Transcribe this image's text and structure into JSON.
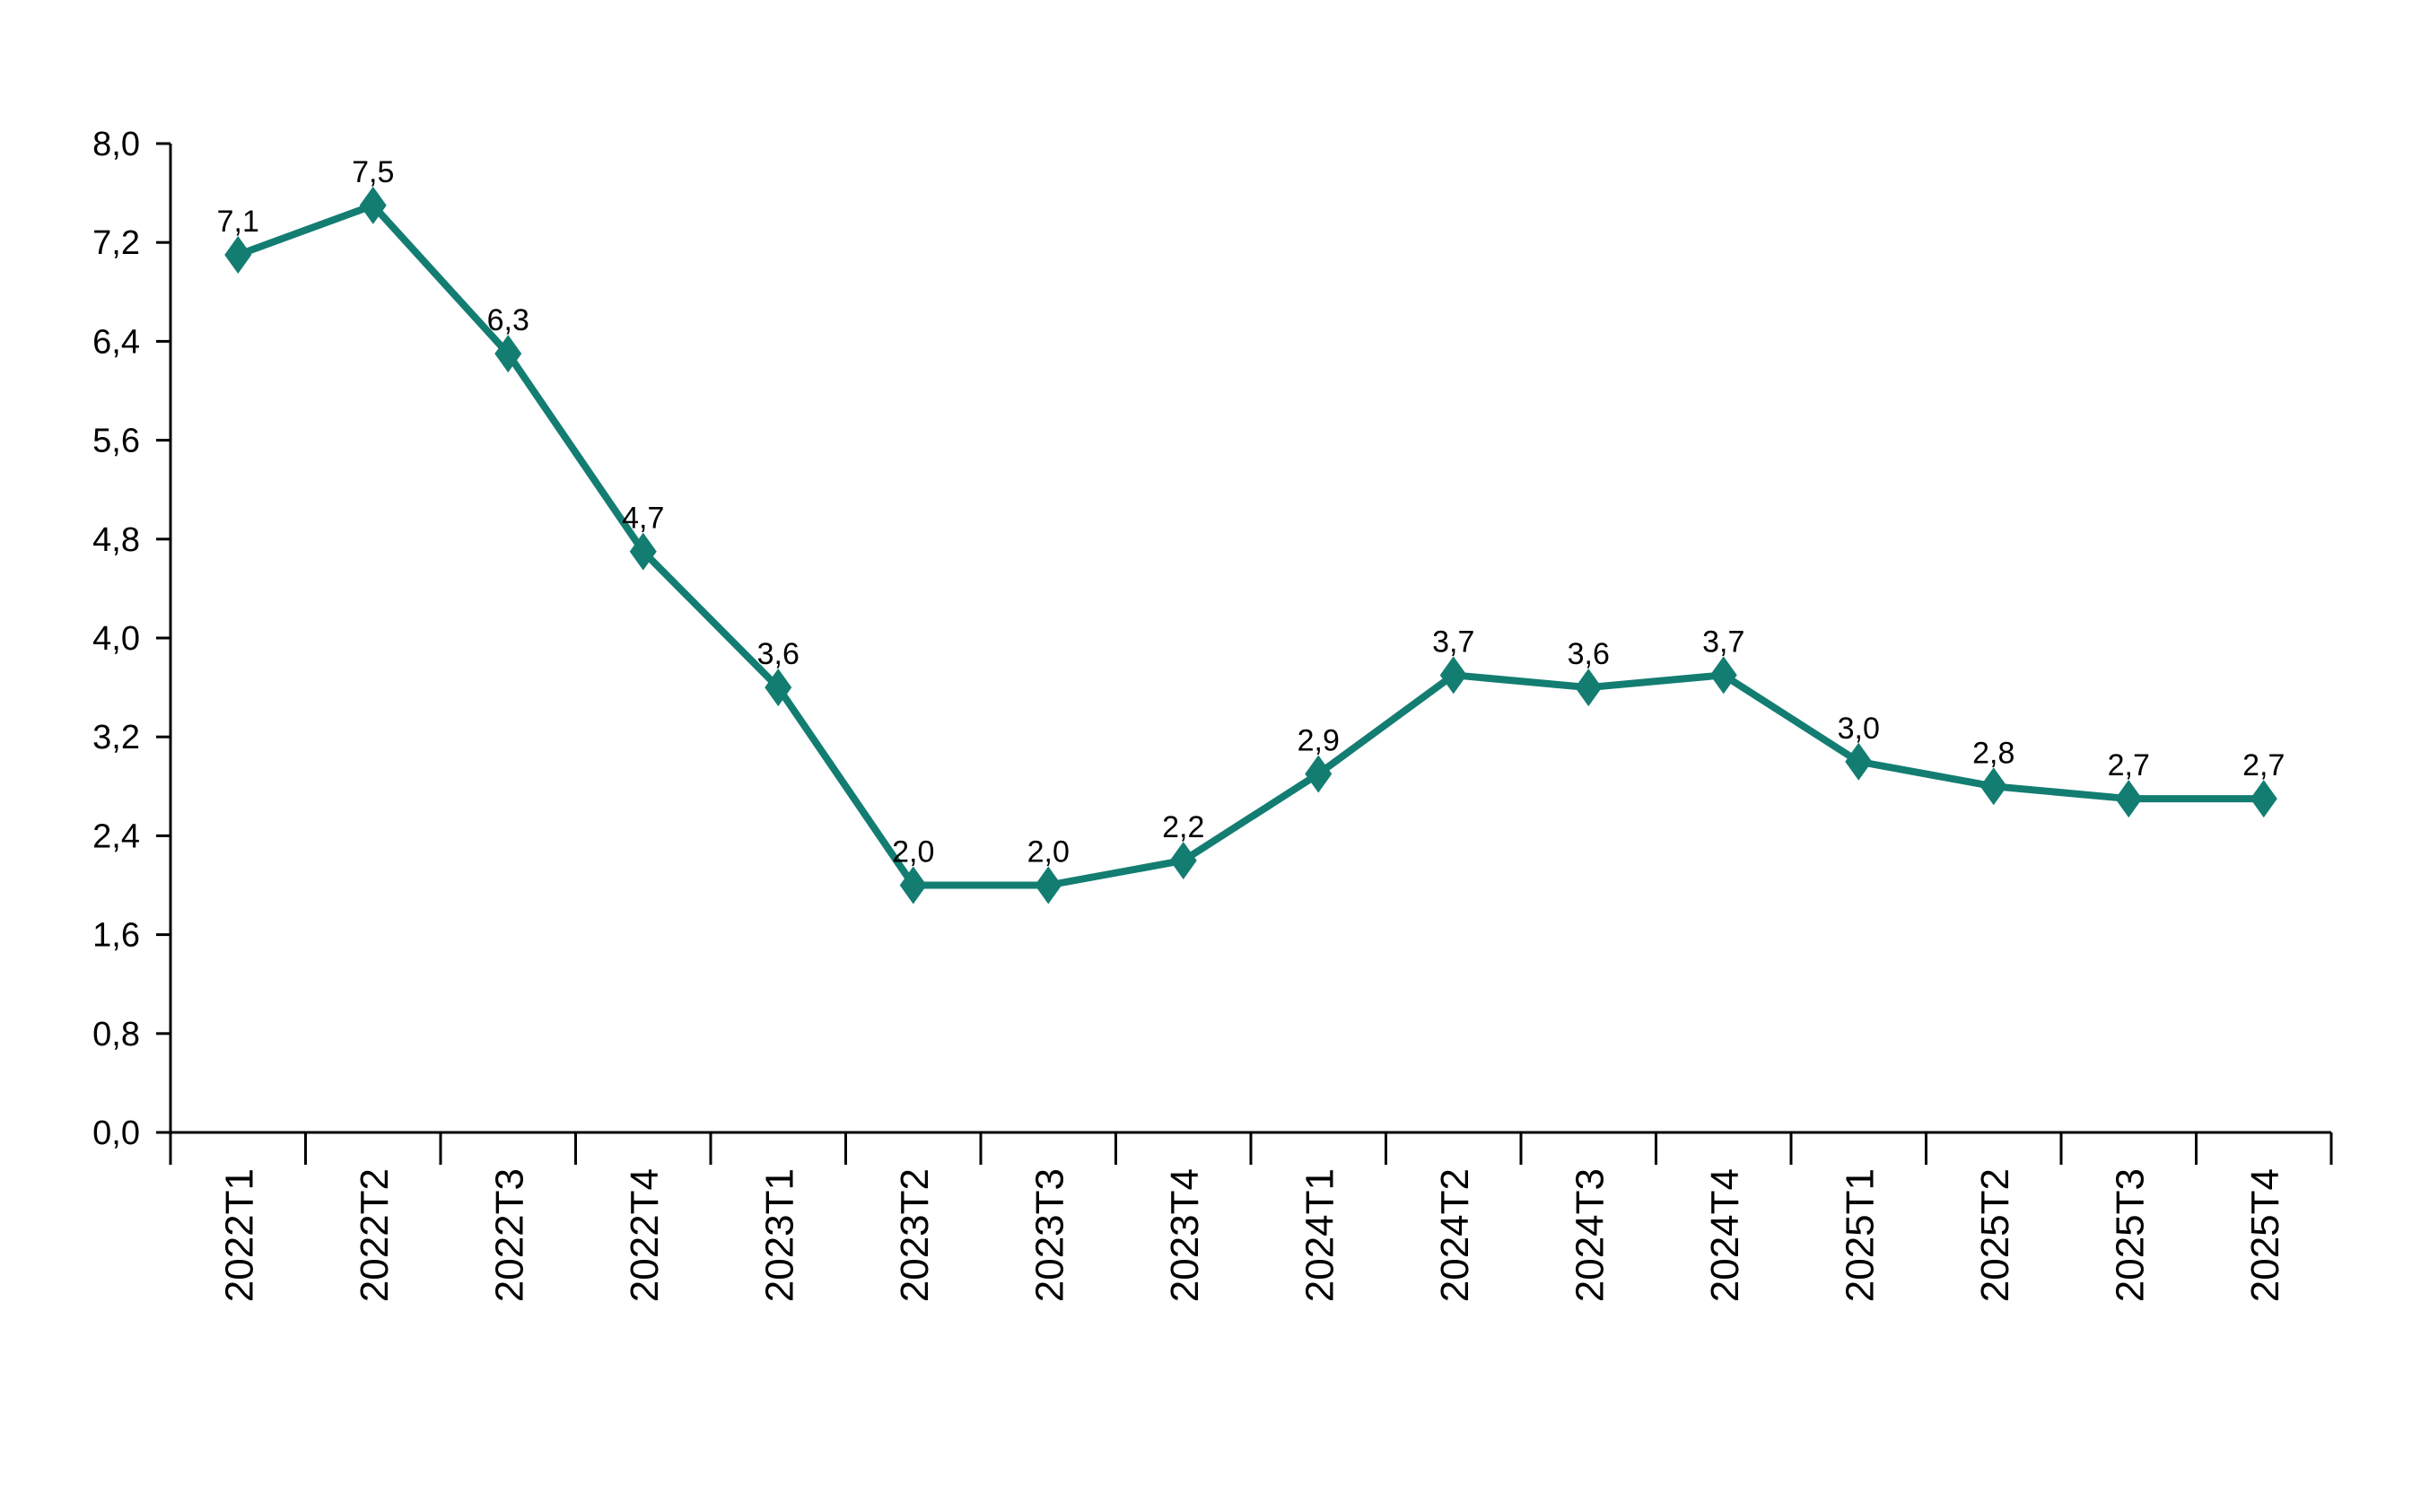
{
  "chart_data": {
    "type": "line",
    "title": "",
    "xlabel": "",
    "ylabel": "",
    "categories": [
      "2022T1",
      "2022T2",
      "2022T3",
      "2022T4",
      "2023T1",
      "2023T2",
      "2023T3",
      "2023T4",
      "2024T1",
      "2024T2",
      "2024T3",
      "2024T4",
      "2025T1",
      "2025T2",
      "2025T3",
      "2025T4"
    ],
    "series": [
      {
        "name": "series-1",
        "values": [
          7.1,
          7.5,
          6.3,
          4.7,
          3.6,
          2.0,
          2.0,
          2.2,
          2.9,
          3.7,
          3.6,
          3.7,
          3.0,
          2.8,
          2.7,
          2.7
        ],
        "labels": [
          "7,1",
          "7,5",
          "6,3",
          "4,7",
          "3,6",
          "2,0",
          "2,0",
          "2,2",
          "2,9",
          "3,7",
          "3,6",
          "3,7",
          "3,0",
          "2,8",
          "2,7",
          "2,7"
        ],
        "color": "#137d72",
        "marker": "diamond"
      }
    ],
    "ylim": [
      0,
      8
    ],
    "yticks": [
      0,
      0.8,
      1.6,
      2.4,
      3.2,
      4.0,
      4.8,
      5.6,
      6.4,
      7.2,
      8.0
    ],
    "ytick_labels": [
      "0,0",
      "0,8",
      "1,6",
      "2,4",
      "3,2",
      "4,0",
      "4,8",
      "5,6",
      "6,4",
      "7,2",
      "8,0"
    ],
    "grid": false,
    "legend": "none",
    "axis_color": "#000000"
  }
}
